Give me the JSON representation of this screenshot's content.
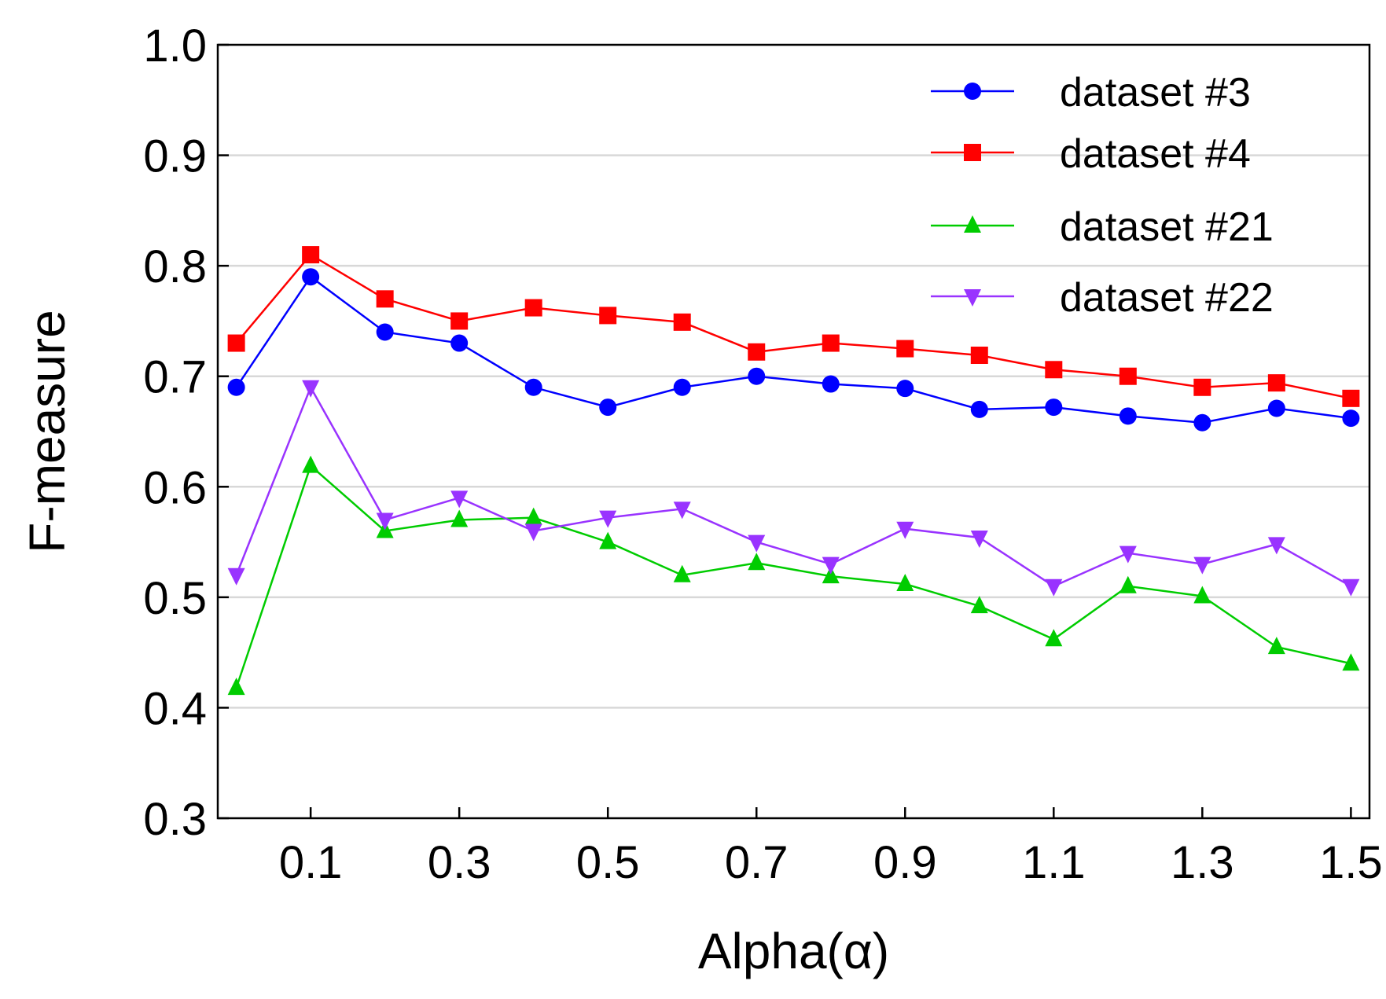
{
  "chart_data": {
    "type": "line",
    "xlabel": "Alpha(α)",
    "ylabel": "F-measure",
    "xlim": [
      -0.025,
      1.525
    ],
    "ylim": [
      0.3,
      1.0
    ],
    "x": [
      0.0,
      0.1,
      0.2,
      0.3,
      0.4,
      0.5,
      0.6,
      0.7,
      0.8,
      0.9,
      1.0,
      1.1,
      1.2,
      1.3,
      1.4,
      1.5
    ],
    "x_ticks": [
      0.1,
      0.3,
      0.5,
      0.7,
      0.9,
      1.1,
      1.3,
      1.5
    ],
    "x_tick_labels": [
      "0.1",
      "0.3",
      "0.5",
      "0.7",
      "0.9",
      "1.1",
      "1.3",
      "1.5"
    ],
    "y_ticks": [
      0.3,
      0.4,
      0.5,
      0.6,
      0.7,
      0.8,
      0.9,
      1.0
    ],
    "y_tick_labels": [
      "0.3",
      "0.4",
      "0.5",
      "0.6",
      "0.7",
      "0.8",
      "0.9",
      "1.0"
    ],
    "grid": true,
    "legend_position": "top-right",
    "series": [
      {
        "name": "dataset #3",
        "color": "#0000ff",
        "marker": "circle",
        "values": [
          0.69,
          0.79,
          0.74,
          0.73,
          0.69,
          0.672,
          0.69,
          0.7,
          0.693,
          0.689,
          0.67,
          0.672,
          0.664,
          0.658,
          0.671,
          0.662
        ]
      },
      {
        "name": "dataset #4",
        "color": "#ff0000",
        "marker": "square",
        "values": [
          0.73,
          0.81,
          0.77,
          0.75,
          0.762,
          0.755,
          0.749,
          0.722,
          0.73,
          0.725,
          0.719,
          0.706,
          0.7,
          0.69,
          0.694,
          0.68
        ]
      },
      {
        "name": "dataset #21",
        "color": "#00cc00",
        "marker": "triangle-up",
        "values": [
          0.418,
          0.619,
          0.56,
          0.57,
          0.572,
          0.55,
          0.52,
          0.531,
          0.519,
          0.512,
          0.492,
          0.462,
          0.51,
          0.501,
          0.455,
          0.44
        ]
      },
      {
        "name": "dataset #22",
        "color": "#9933ff",
        "marker": "triangle-down",
        "values": [
          0.52,
          0.69,
          0.57,
          0.59,
          0.56,
          0.572,
          0.58,
          0.55,
          0.53,
          0.562,
          0.554,
          0.51,
          0.54,
          0.53,
          0.548,
          0.51
        ]
      }
    ]
  }
}
